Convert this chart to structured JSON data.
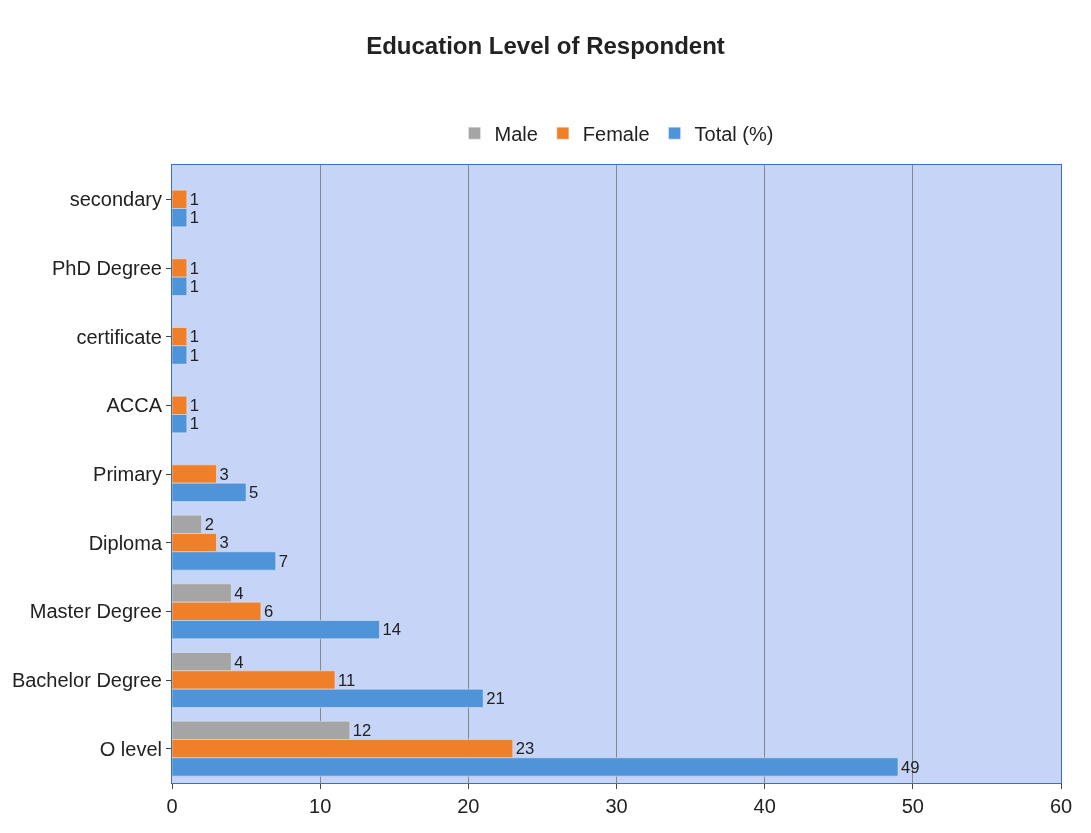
{
  "chart_data": {
    "type": "bar",
    "orientation": "horizontal",
    "title": "Education Level of Respondent",
    "categories": [
      "secondary",
      "PhD Degree",
      "certificate",
      "ACCA",
      "Primary",
      "Diploma",
      "Master Degree",
      "Bachelor Degree",
      "O level"
    ],
    "series": [
      {
        "name": "Male",
        "color": "#a5a5a5",
        "values": [
          null,
          null,
          null,
          null,
          null,
          2,
          4,
          4,
          12
        ],
        "value_labels": [
          null,
          null,
          null,
          null,
          null,
          "2",
          "4",
          "4",
          "12"
        ]
      },
      {
        "name": "Female",
        "color": "#f07f2a",
        "values": [
          1,
          1,
          1,
          1,
          3,
          3,
          6,
          11,
          23
        ],
        "value_labels": [
          "1",
          "1",
          "1",
          "1",
          "3",
          "3",
          "6",
          "11",
          "23"
        ]
      },
      {
        "name": "Total (%)",
        "color": "#4f93d8",
        "values": [
          1,
          1,
          1,
          1,
          5,
          7,
          14,
          21,
          49
        ],
        "value_labels": [
          "1",
          "1",
          "1",
          "1",
          "5",
          "7",
          "14",
          "21",
          "49"
        ]
      }
    ],
    "xlim": [
      0,
      60
    ],
    "xticks": [
      0,
      10,
      20,
      30,
      40,
      50,
      60
    ],
    "grid": "x",
    "legend": "top"
  }
}
